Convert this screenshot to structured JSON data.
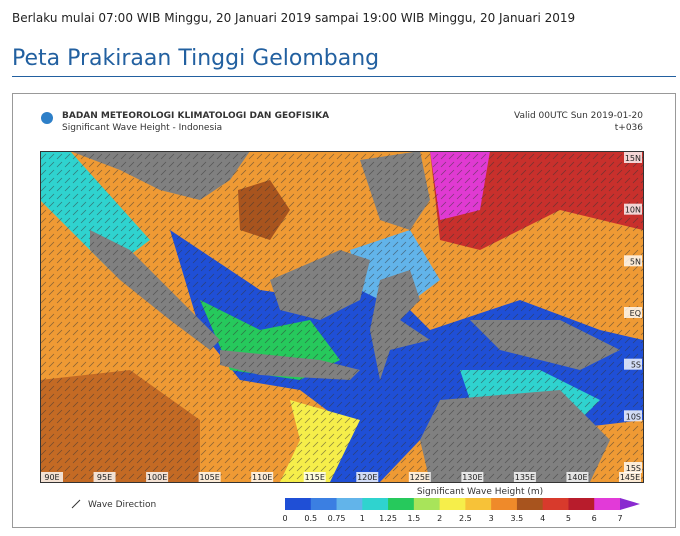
{
  "header": {
    "validity": "Berlaku mulai 07:00 WIB  Minggu, 20 Januari 2019 sampai 19:00 WIB  Minggu, 20 Januari 2019",
    "title": "Peta Prakiraan Tinggi Gelombang"
  },
  "map": {
    "agency": "BADAN METEOROLOGI KLIMATOLOGI DAN GEOFISIKA",
    "subtitle": "Significant Wave Height - Indonesia",
    "valid": "Valid 00UTC Sun 2019-01-20",
    "step": "t+036",
    "lat_labels": [
      "15N",
      "10N",
      "5N",
      "EQ",
      "5S",
      "10S",
      "15S"
    ],
    "lon_labels": [
      "90E",
      "95E",
      "100E",
      "105E",
      "110E",
      "115E",
      "120E",
      "125E",
      "130E",
      "135E",
      "140E",
      "145E"
    ],
    "direction_label": "Wave Direction"
  },
  "legend": {
    "title": "Significant Wave Height (m)",
    "ticks": [
      0,
      0.5,
      0.75,
      1,
      1.25,
      1.5,
      2,
      2.5,
      3,
      3.5,
      4,
      5,
      6,
      7
    ],
    "colors": [
      "#1f4fd6",
      "#3b7fe2",
      "#62b4ea",
      "#2fd3cf",
      "#26c95c",
      "#a8e45a",
      "#f6ee4a",
      "#f7c238",
      "#ef8a2a",
      "#a8541e",
      "#d83a2c",
      "#b81c2c",
      "#e23ad8",
      "#8a2ad0"
    ]
  }
}
